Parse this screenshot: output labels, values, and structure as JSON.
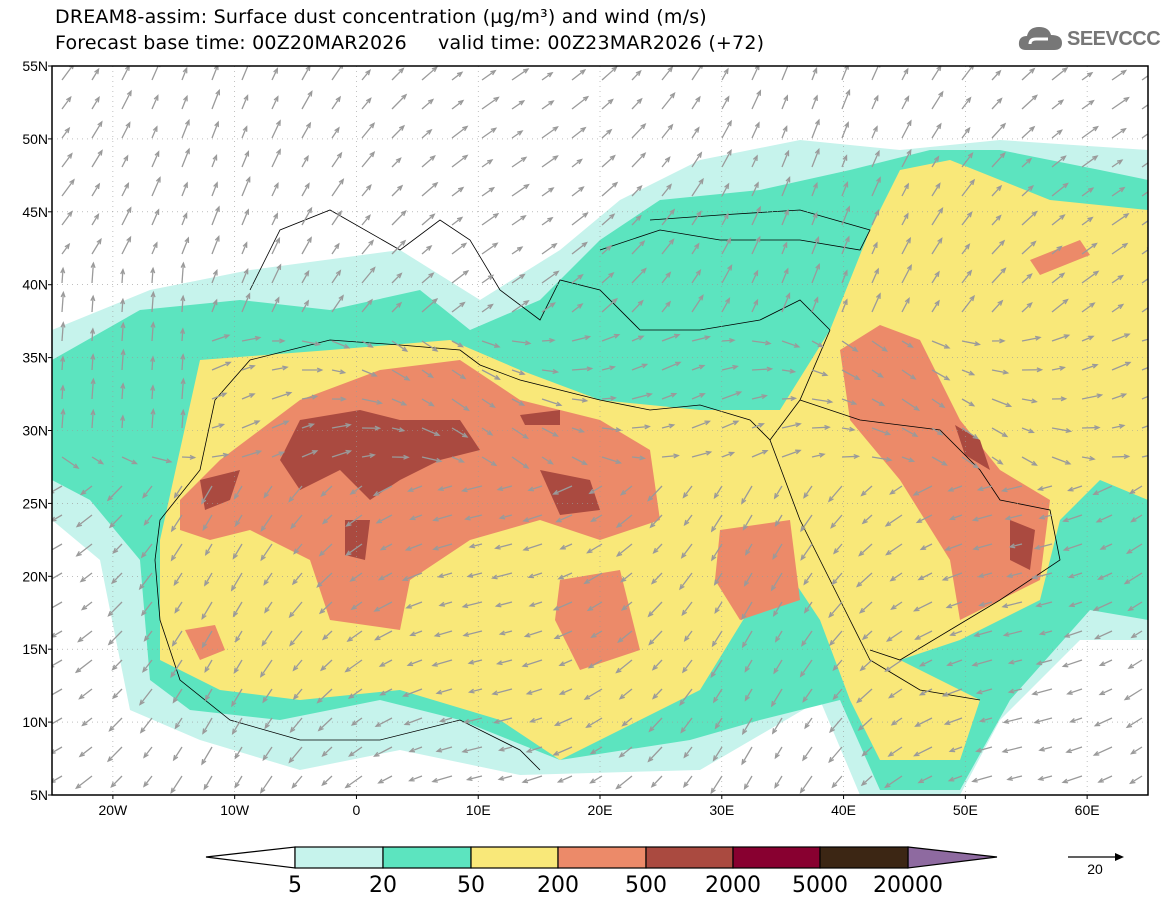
{
  "header": {
    "title_line1": "DREAM8-assim: Surface dust concentration (µg/m³) and wind (m/s)",
    "title_line2": "Forecast base time: 00Z20MAR2026     valid time: 00Z23MAR2026 (+72)",
    "logo_text": "SEEVCCC"
  },
  "map": {
    "lat_labels": [
      "55N",
      "50N",
      "45N",
      "40N",
      "35N",
      "30N",
      "25N",
      "20N",
      "15N",
      "10N",
      "5N"
    ],
    "lon_labels": [
      "20W",
      "10W",
      "0",
      "10E",
      "20E",
      "30E",
      "40E",
      "50E",
      "60E"
    ]
  },
  "colorbar": {
    "labels": [
      "5",
      "20",
      "50",
      "200",
      "500",
      "2000",
      "5000",
      "20000"
    ],
    "colors": [
      "#c6f3ec",
      "#5ce4bf",
      "#f9e879",
      "#ec8a69",
      "#aa4a40",
      "#880030",
      "#3c2614",
      "#8e6aa0"
    ],
    "units": "µg/m³"
  },
  "wind_reference": {
    "value": "20"
  }
}
